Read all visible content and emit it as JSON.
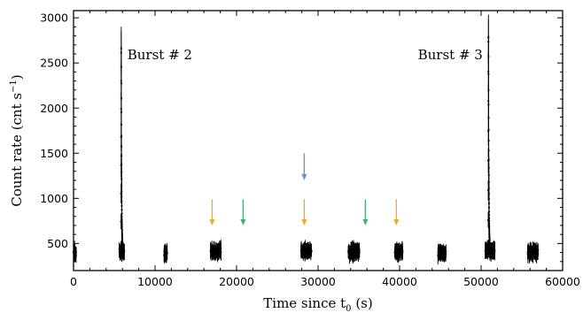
{
  "chart_data": {
    "type": "scatter",
    "xlabel": "Time since t",
    "xlabel_sub": "0",
    "xlabel_tail": " (s)",
    "ylabel": "Count rate (cnt s",
    "ylabel_sup": "−1",
    "ylabel_tail": ")",
    "xlim": [
      0,
      60000
    ],
    "ylim": [
      200,
      3080
    ],
    "xticks": [
      0,
      10000,
      20000,
      30000,
      40000,
      50000,
      60000
    ],
    "yticks": [
      500,
      1000,
      1500,
      2000,
      2500,
      3000
    ],
    "grid": false,
    "annotations": [
      {
        "text": "Burst # 2",
        "x": 6600,
        "y": 2590,
        "anchor": "start"
      },
      {
        "text": "Burst # 3",
        "x": 50200,
        "y": 2590,
        "anchor": "end"
      }
    ],
    "bursts": [
      {
        "name": "Burst # 2",
        "t_peak": 5850,
        "peak": 2770
      },
      {
        "name": "Burst # 3",
        "t_peak": 50900,
        "peak": 2900
      }
    ],
    "segments": [
      {
        "start": 0,
        "end": 350,
        "mean": 400,
        "spread": 60
      },
      {
        "start": 5600,
        "end": 6250,
        "mean": 410,
        "spread": 60
      },
      {
        "start": 11100,
        "end": 11500,
        "mean": 400,
        "spread": 60
      },
      {
        "start": 16800,
        "end": 18100,
        "mean": 415,
        "spread": 60
      },
      {
        "start": 27900,
        "end": 29200,
        "mean": 420,
        "spread": 55
      },
      {
        "start": 33700,
        "end": 35100,
        "mean": 405,
        "spread": 55
      },
      {
        "start": 39400,
        "end": 40400,
        "mean": 415,
        "spread": 55
      },
      {
        "start": 44700,
        "end": 45700,
        "mean": 395,
        "spread": 55
      },
      {
        "start": 50500,
        "end": 51700,
        "mean": 420,
        "spread": 60
      },
      {
        "start": 55700,
        "end": 57000,
        "mean": 405,
        "spread": 60
      }
    ],
    "arrows": [
      {
        "x": 17000,
        "y_top": 990,
        "y_tip": 700,
        "color": "#f5a623"
      },
      {
        "x": 20800,
        "y_top": 990,
        "y_tip": 700,
        "color": "#3cb371"
      },
      {
        "x": 28300,
        "y_top": 1500,
        "y_tip": 1200,
        "color": "#6a8fd6"
      },
      {
        "x": 28300,
        "y_top": 990,
        "y_tip": 700,
        "color": "#f5a623"
      },
      {
        "x": 35800,
        "y_top": 990,
        "y_tip": 700,
        "color": "#3cb371"
      },
      {
        "x": 39600,
        "y_top": 990,
        "y_tip": 700,
        "color": "#f5a623"
      }
    ],
    "marker_color": "#000000"
  }
}
